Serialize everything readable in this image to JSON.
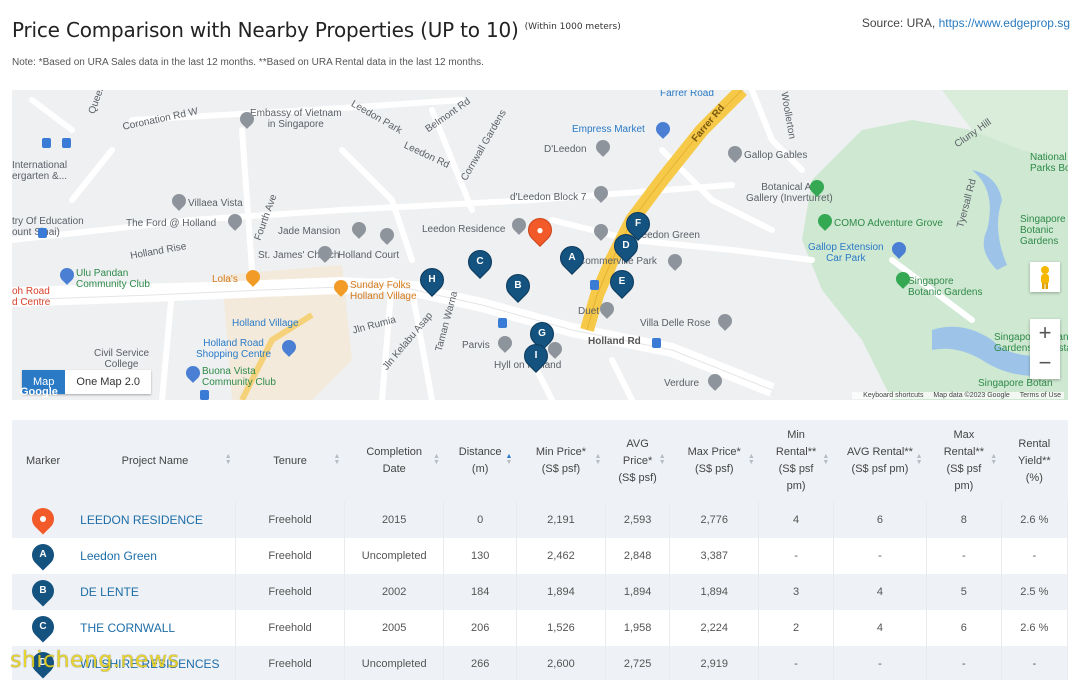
{
  "header": {
    "title": "Price Comparison with Nearby Properties (UP to 10)",
    "subtitle": "(Within 1000 meters)",
    "source_label": "Source: URA,",
    "source_link": "https://www.edgeprop.sg"
  },
  "note": "Note: *Based on URA Sales data in the last 12 months. **Based on URA Rental data in the last 12 months.",
  "map": {
    "tabs": [
      "Map",
      "One Map 2.0"
    ],
    "active_tab": "Map",
    "zoom_in": "+",
    "zoom_out": "−",
    "attribution": [
      "Keyboard shortcuts",
      "Map data ©2023 Google",
      "Terms of Use"
    ],
    "logo": "Google",
    "colors": {
      "marker_blue": "#14527f",
      "marker_red": "#f25a2a",
      "main_road": "#f7c948",
      "park": "#cfe8d2"
    },
    "labels": {
      "embassy": "Embassy of Vietnam\nin Singapore",
      "empress": "Empress Market",
      "dleedon": "D'Leedon",
      "gallop_gables": "Gallop Gables",
      "national_parks": "National\nParks Boar",
      "international": "International\nergarten &...",
      "villaea": "Villaea Vista",
      "dleedon_block": "d'Leedon Block 7",
      "botanical_gallery": "Botanical Art\nGallery (Inverturret)",
      "ministry": "try Of Education\nount Sinai)",
      "the_ford": "The Ford @ Holland",
      "jade": "Jade Mansion",
      "leedon_residence": "Leedon Residence",
      "leedon_green": "Leedon Green",
      "como": "COMO Adventure Grove",
      "sg_botanic_gardens": "Singapore\nBotanic\nGardens",
      "st_james": "St. James' Church",
      "holland_court": "Holland Court",
      "commerville": "Commerville Park",
      "gallop_ext": "Gallop Extension\nCar Park",
      "ulu_pandan": "Ulu Pandan\nCommunity Club",
      "lolas": "Lola's",
      "sunday_folks": "Sunday Folks\nHolland Village",
      "sg_botanic2": "Singapore\nBotanic Gardens",
      "holland_village": "Holland Village",
      "duet": "Duet",
      "villa_delle": "Villa Delle Rose",
      "ohroad": "oh Road\nd Centre",
      "holland_road_sc": "Holland Road\nShopping Centre",
      "parvis": "Parvis",
      "holland_rd": "Holland Rd",
      "civil_service": "Civil Service\nCollege",
      "buona_vista": "Buona Vista\nCommunity Club",
      "hyll": "Hyll on Holland",
      "verdure": "Verdure",
      "sg_botanic_bandstand": "Singapore Botan\nGardens Bandsta",
      "sg_botanic3": "Singapore Botan",
      "farrer_rd": "Farrer Rd",
      "farrer_road": "Farrer Road",
      "coronation": "Coronation Rd W",
      "leedon_park": "Leedon Park",
      "leedon_rd": "Leedon Rd",
      "belmont": "Belmont Rd",
      "cornwall": "Cornwall Gardens",
      "fourth_ave": "Fourth Ave",
      "holland_rise": "Holland Rise",
      "jln_rumia": "Jln Rumia",
      "jln_kelabu": "Jln Kelabu Asap",
      "taman_warna": "Taman Warna",
      "tyersall": "Tyersall Rd",
      "cluny": "Cluny Hill",
      "woollerton": "Woollerton",
      "queen": "Queen"
    }
  },
  "table": {
    "headers": [
      "Marker",
      "Project Name",
      "Tenure",
      "Completion Date",
      "Distance (m)",
      "Min Price* (S$ psf)",
      "AVG Price* (S$ psf)",
      "Max Price* (S$ psf)",
      "Min Rental** (S$ psf pm)",
      "AVG Rental** (S$ psf pm)",
      "Max Rental** (S$ psf pm)",
      "Rental Yield** (%)"
    ],
    "rows": [
      {
        "marker": "",
        "marker_type": "current",
        "name": "LEEDON RESIDENCE",
        "tenure": "Freehold",
        "completion": "2015",
        "distance": "0",
        "min_price": "2,191",
        "avg_price": "2,593",
        "max_price": "2,776",
        "min_rental": "4",
        "avg_rental": "6",
        "max_rental": "8",
        "yield": "2.6 %"
      },
      {
        "marker": "A",
        "marker_type": "nearby",
        "name": "Leedon Green",
        "tenure": "Freehold",
        "completion": "Uncompleted",
        "distance": "130",
        "min_price": "2,462",
        "avg_price": "2,848",
        "max_price": "3,387",
        "min_rental": "-",
        "avg_rental": "-",
        "max_rental": "-",
        "yield": "-"
      },
      {
        "marker": "B",
        "marker_type": "nearby",
        "name": "DE LENTE",
        "tenure": "Freehold",
        "completion": "2002",
        "distance": "184",
        "min_price": "1,894",
        "avg_price": "1,894",
        "max_price": "1,894",
        "min_rental": "3",
        "avg_rental": "4",
        "max_rental": "5",
        "yield": "2.5 %"
      },
      {
        "marker": "C",
        "marker_type": "nearby",
        "name": "THE CORNWALL",
        "tenure": "Freehold",
        "completion": "2005",
        "distance": "206",
        "min_price": "1,526",
        "avg_price": "1,958",
        "max_price": "2,224",
        "min_rental": "2",
        "avg_rental": "4",
        "max_rental": "6",
        "yield": "2.6 %"
      },
      {
        "marker": "D",
        "marker_type": "nearby",
        "name": "WILSHIRE RESIDENCES",
        "tenure": "Freehold",
        "completion": "Uncompleted",
        "distance": "266",
        "min_price": "2,600",
        "avg_price": "2,725",
        "max_price": "2,919",
        "min_rental": "-",
        "avg_rental": "-",
        "max_rental": "-",
        "yield": "-"
      }
    ]
  },
  "watermark": "shicheng.news"
}
